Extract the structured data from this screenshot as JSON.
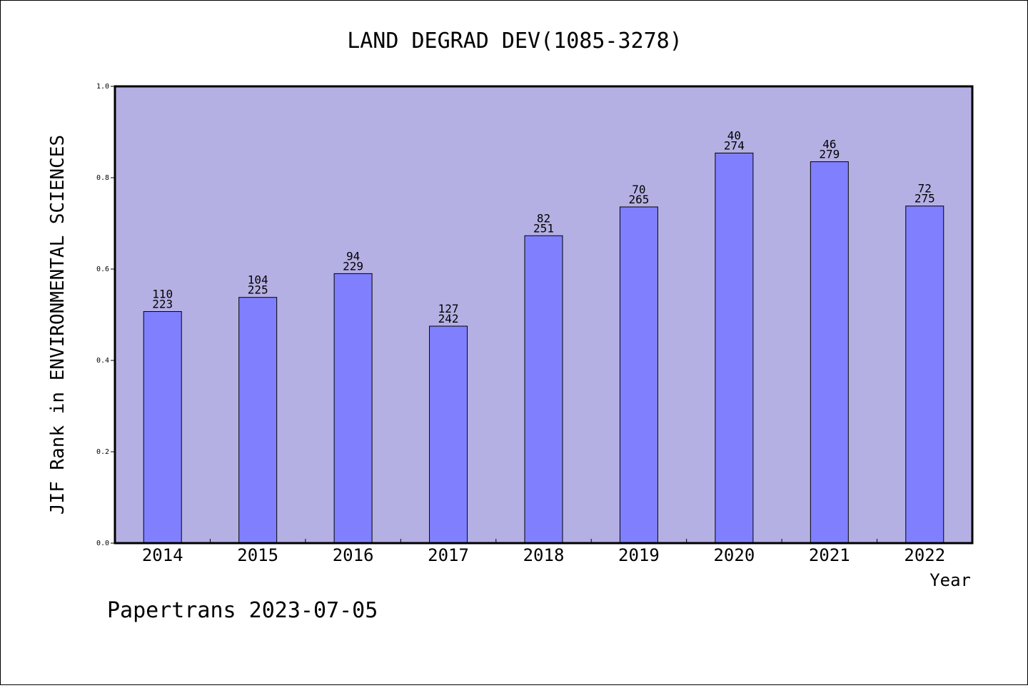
{
  "chart_data": {
    "type": "bar",
    "title": "LAND DEGRAD DEV(1085-3278)",
    "xlabel": "Year",
    "ylabel": "JIF Rank in ENVIRONMENTAL SCIENCES",
    "ylim": [
      0.0,
      1.0
    ],
    "yticks": [
      "0.0",
      "0.2",
      "0.4",
      "0.6",
      "0.8",
      "1.0"
    ],
    "grid": false,
    "categories": [
      "2014",
      "2015",
      "2016",
      "2017",
      "2018",
      "2019",
      "2020",
      "2021",
      "2022"
    ],
    "values": [
      0.507,
      0.538,
      0.59,
      0.475,
      0.673,
      0.736,
      0.854,
      0.835,
      0.738
    ],
    "rank_labels": [
      "110",
      "104",
      "94",
      "127",
      "82",
      "70",
      "40",
      "46",
      "72"
    ],
    "total_labels": [
      "223",
      "225",
      "229",
      "242",
      "251",
      "265",
      "274",
      "279",
      "275"
    ],
    "colors": {
      "plot_background": "#b5b0e3",
      "bar_fill": "#8080ff",
      "bar_stroke": "#000000"
    }
  },
  "footer": {
    "text": "Papertrans 2023-07-05"
  }
}
